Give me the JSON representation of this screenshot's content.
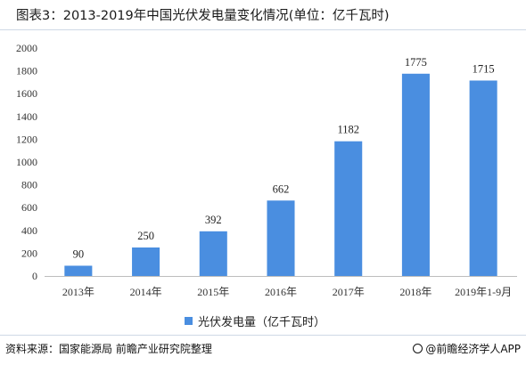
{
  "title": "图表3：2013-2019年中国光伏发电量变化情况(单位：亿千瓦时)",
  "footer": {
    "source": "资料来源：国家能源局 前瞻产业研究院整理",
    "brand": "@前瞻经济学人APP",
    "brand_icon": "qianzhan-logo-icon"
  },
  "colors": {
    "bar": "#4a8ee0",
    "axis": "#bdbdbd"
  },
  "chart_data": {
    "type": "bar",
    "title": "图表3：2013-2019年中国光伏发电量变化情况(单位：亿千瓦时)",
    "categories": [
      "2013年",
      "2014年",
      "2015年",
      "2016年",
      "2017年",
      "2018年",
      "2019年1-9月"
    ],
    "series": [
      {
        "name": "光伏发电量（亿千瓦时）",
        "values": [
          90,
          250,
          392,
          662,
          1182,
          1775,
          1715
        ]
      }
    ],
    "ylim": [
      0,
      2000
    ],
    "yticks": [
      0,
      200,
      400,
      600,
      800,
      1000,
      1200,
      1400,
      1600,
      1800,
      2000
    ],
    "grid": false,
    "legend_position": "bottom",
    "data_labels": true
  }
}
